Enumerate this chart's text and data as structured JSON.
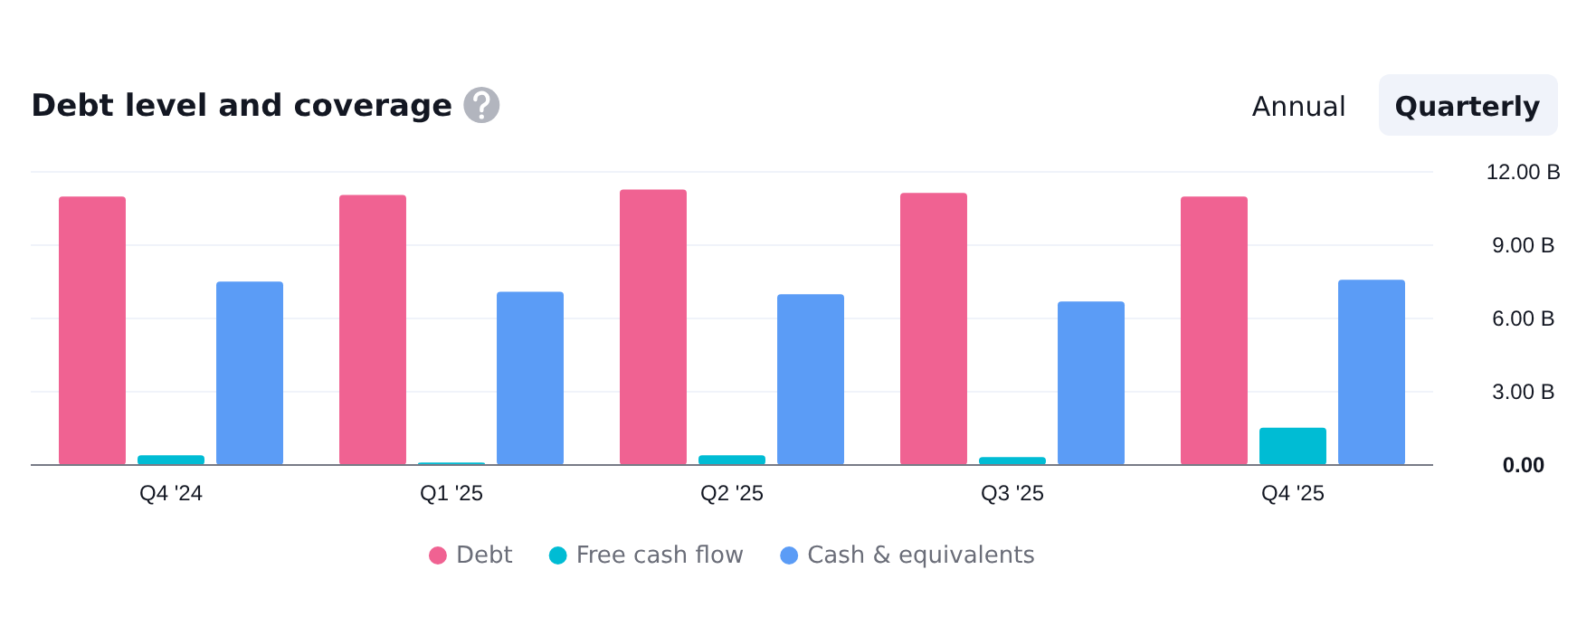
{
  "chart_data": {
    "type": "bar",
    "title": "Debt level and coverage",
    "categories": [
      "Q4 '24",
      "Q1 '25",
      "Q2 '25",
      "Q3 '25",
      "Q4 '25"
    ],
    "series": [
      {
        "name": "Debt",
        "color": "#f06292",
        "values": [
          10.99,
          11.06,
          11.28,
          11.14,
          10.99
        ]
      },
      {
        "name": "Free cash flow",
        "color": "#00bcd4",
        "values": [
          0.4,
          0.1,
          0.4,
          0.32,
          1.53
        ]
      },
      {
        "name": "Cash & equivalents",
        "color": "#5b9cf6",
        "values": [
          7.51,
          7.09,
          6.99,
          6.69,
          7.58
        ]
      }
    ],
    "ylim": [
      0,
      12
    ],
    "yticks": [
      {
        "value": 0,
        "label": "0.00"
      },
      {
        "value": 3,
        "label": "3.00 B"
      },
      {
        "value": 6,
        "label": "6.00 B"
      },
      {
        "value": 9,
        "label": "9.00 B"
      },
      {
        "value": 12,
        "label": "12.00 B"
      }
    ],
    "grid": "y",
    "legend": "bottom",
    "marker": "circle",
    "annotations": [
      "Annual",
      "Quarterly"
    ]
  }
}
